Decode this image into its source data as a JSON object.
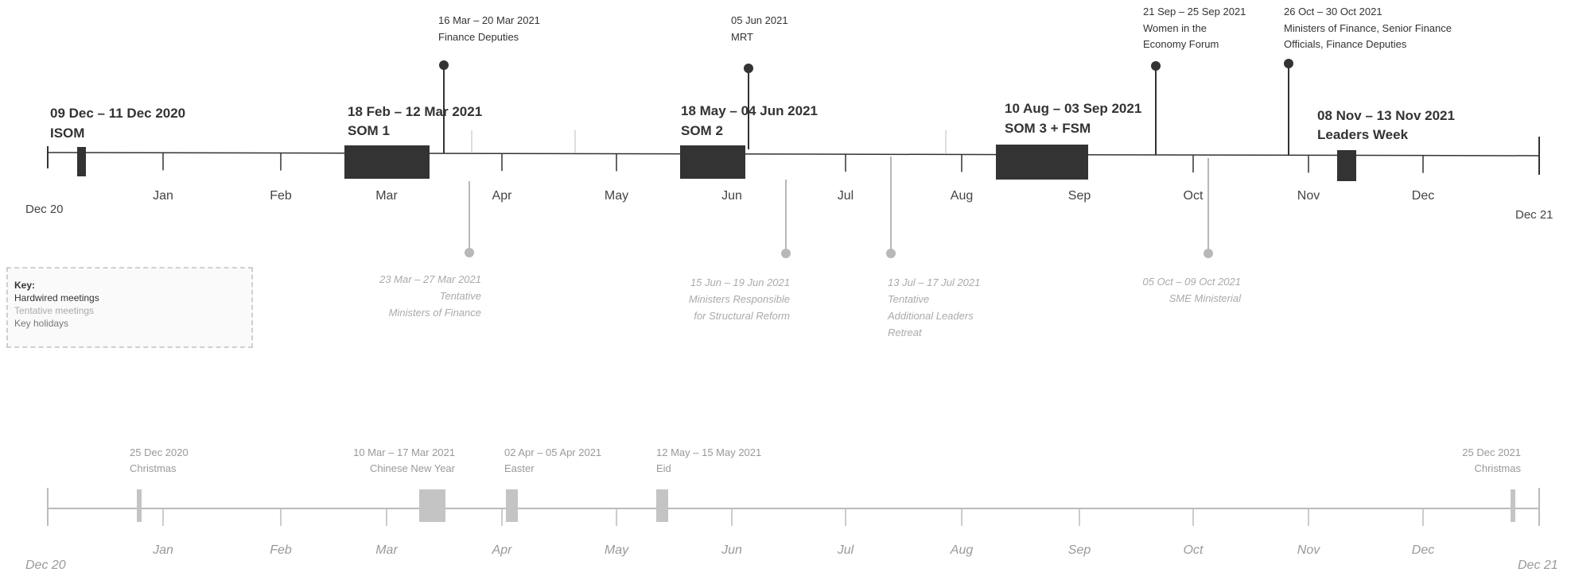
{
  "colors": {
    "hardwired": "#333333",
    "tentative": "#b8b8b8",
    "holiday": "#c4c4c4",
    "axis": "#333333",
    "axis_light": "#bbbbbb"
  },
  "timeline": {
    "start_label": "Dec 20",
    "end_label": "Dec 21",
    "months": [
      "Jan",
      "Feb",
      "Mar",
      "Apr",
      "May",
      "Jun",
      "Jul",
      "Aug",
      "Sep",
      "Oct",
      "Nov",
      "Dec"
    ]
  },
  "meetings": [
    {
      "dates": "09 Dec – 11 Dec 2020",
      "name": "ISOM"
    },
    {
      "dates": "18 Feb – 12 Mar 2021",
      "name": "SOM 1"
    },
    {
      "dates": "18 May – 04 Jun 2021",
      "name": "SOM 2"
    },
    {
      "dates": "10 Aug – 03 Sep 2021",
      "name": "SOM 3 + FSM"
    },
    {
      "dates": "08 Nov – 13 Nov 2021",
      "name": "Leaders Week"
    }
  ],
  "pins_above": [
    {
      "dates": "16 Mar – 20 Mar 2021",
      "lines": [
        "Finance Deputies"
      ]
    },
    {
      "dates": "05 Jun 2021",
      "lines": [
        "MRT"
      ]
    },
    {
      "dates": "21 Sep – 25 Sep 2021",
      "lines": [
        "Women in the",
        "Economy Forum"
      ]
    },
    {
      "dates": "26 Oct – 30 Oct 2021",
      "lines": [
        "Ministers  of Finance,  Senior Finance",
        "Officials, Finance Deputies"
      ]
    }
  ],
  "tentative": [
    {
      "dates": "23 Mar –  27 Mar 2021",
      "lines": [
        "Tentative",
        "Ministers of Finance"
      ]
    },
    {
      "dates": "15 Jun – 19 Jun 2021",
      "lines": [
        "Ministers Responsible",
        "for Structural Reform"
      ]
    },
    {
      "dates": "13 Jul – 17 Jul 2021",
      "lines": [
        "Tentative",
        "Additional Leaders",
        "Retreat"
      ]
    },
    {
      "dates": "05 Oct  – 09 Oct 2021",
      "lines": [
        "SME Ministerial"
      ]
    }
  ],
  "holidays": [
    {
      "dates": "25 Dec 2020",
      "name": "Christmas"
    },
    {
      "dates": "10 Mar – 17 Mar 2021",
      "name": "Chinese New Year"
    },
    {
      "dates": "02 Apr  – 05 Apr 2021",
      "name": "Easter"
    },
    {
      "dates": "12 May – 15 May 2021",
      "name": "Eid"
    },
    {
      "dates": "25 Dec 2021",
      "name": "Christmas"
    }
  ],
  "key": {
    "title": "Key:",
    "hardwired": "Hardwired meetings",
    "tentative": "Tentative meetings",
    "holidays": "Key holidays"
  }
}
